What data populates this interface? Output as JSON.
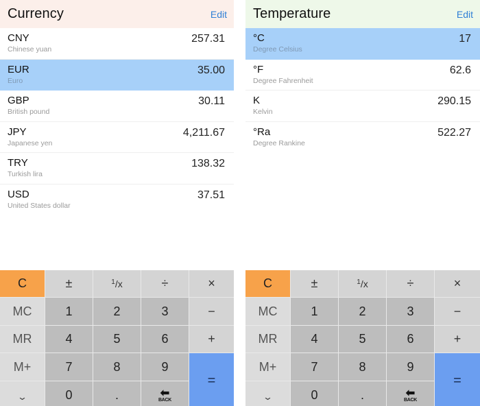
{
  "panels": [
    {
      "title": "Currency",
      "edit_label": "Edit",
      "header_bg": "#fcefea",
      "rows": [
        {
          "code": "CNY",
          "name": "Chinese yuan",
          "value": "257.31",
          "selected": false
        },
        {
          "code": "EUR",
          "name": "Euro",
          "value": "35.00",
          "selected": true
        },
        {
          "code": "GBP",
          "name": "British pound",
          "value": "30.11",
          "selected": false
        },
        {
          "code": "JPY",
          "name": "Japanese yen",
          "value": "4,211.67",
          "selected": false
        },
        {
          "code": "TRY",
          "name": "Turkish lira",
          "value": "138.32",
          "selected": false
        },
        {
          "code": "USD",
          "name": "United States dollar",
          "value": "37.51",
          "selected": false
        }
      ]
    },
    {
      "title": "Temperature",
      "edit_label": "Edit",
      "header_bg": "#eef8e9",
      "rows": [
        {
          "code": "°C",
          "name": "Degree Celsius",
          "value": "17",
          "selected": true
        },
        {
          "code": "°F",
          "name": "Degree Fahrenheit",
          "value": "62.6",
          "selected": false
        },
        {
          "code": "K",
          "name": "Kelvin",
          "value": "290.15",
          "selected": false
        },
        {
          "code": "°Ra",
          "name": "Degree Rankine",
          "value": "522.27",
          "selected": false
        }
      ]
    }
  ],
  "keypad": {
    "clear": "C",
    "plus_minus": "±",
    "reciprocal_num": "1",
    "reciprocal_den": "/x",
    "divide": "÷",
    "multiply": "×",
    "mc": "MC",
    "mr": "MR",
    "m_plus": "M+",
    "collapse": "⌄",
    "minus": "−",
    "plus": "+",
    "equals": "=",
    "decimal": ".",
    "back_label": "BACK",
    "back_arrow": "⬅",
    "digits": [
      "0",
      "1",
      "2",
      "3",
      "4",
      "5",
      "6",
      "7",
      "8",
      "9"
    ]
  },
  "colors": {
    "selected_row": "#a7d0f9",
    "clear_key": "#f7a24a",
    "equals_key": "#6b9ef0",
    "edit_link": "#2f7fd6"
  }
}
